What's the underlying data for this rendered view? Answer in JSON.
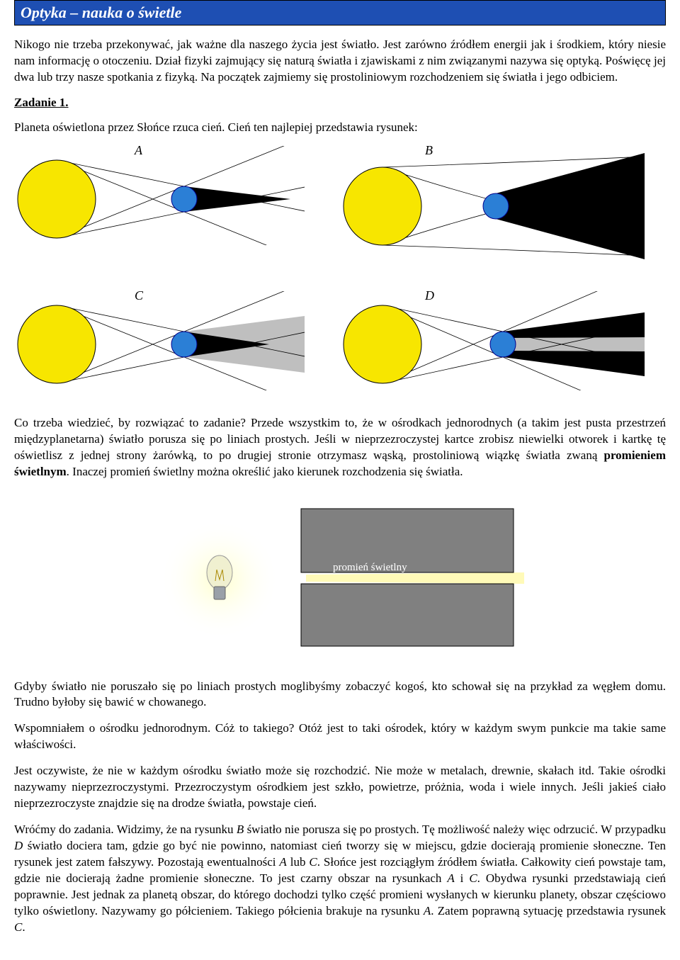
{
  "header": {
    "title": "Optyka – nauka o świetle"
  },
  "intro": {
    "text": "Nikogo nie trzeba przekonywać, jak ważne dla naszego życia jest światło. Jest zarówno źródłem energii jak i środkiem, który niesie nam informację o otoczeniu. Dział fizyki zajmujący się naturą światła i zjawiskami z nim związanymi nazywa się optyką. Poświęcę jej dwa lub trzy nasze spotkania z fizyką. Na początek zajmiemy się prostoliniowym rozchodzeniem się światła i jego odbiciem."
  },
  "task1": {
    "heading": "Zadanie 1.",
    "prompt": "Planeta oświetlona przez Słońce rzuca cień. Cień ten najlepiej przedstawia rysunek:",
    "labels": {
      "a": "A",
      "b": "B",
      "c": "C",
      "d": "D"
    }
  },
  "diagrams": {
    "sun_fill": "#f7e600",
    "sun_stroke": "#000000",
    "planet_fill": "#2b7fd6",
    "planet_stroke": "#00008b",
    "umbra_fill": "#000000",
    "penumbra_fill": "#bfbfbf",
    "ray_stroke": "#000000",
    "ray_width": 0.8,
    "sun_r": 55,
    "planet_r": 18
  },
  "explain1": {
    "text": "Co trzeba wiedzieć, by rozwiązać to zadanie? Przede wszystkim to, że w ośrodkach jednorodnych (a takim jest pusta przestrzeń międzyplanetarna) światło porusza się po liniach prostych. Jeśli w nieprzezroczystej kartce zrobisz niewielki otworek i kartkę tę oświetlisz z jednej strony żarówką, to po drugiej stronie otrzymasz wąską, prostoliniową wiązkę światła zwaną ",
    "bold": "promieniem świetlnym",
    "text2": ". Inaczej promień świetlny można określić jako kierunek rozchodzenia się światła."
  },
  "bulb": {
    "caption": "promień świetlny",
    "glow_inner": "#ffffcc",
    "glow_outer": "#ffffff",
    "barrier_fill": "#808080",
    "barrier_stroke": "#000000",
    "beam_fill": "#fff9b0",
    "bulb_glass": "#f0f0d0",
    "bulb_base": "#9aa0a8"
  },
  "explain2": {
    "p1": "Gdyby światło nie poruszało się po liniach prostych moglibyśmy zobaczyć kogoś, kto schował się na przykład za węgłem domu. Trudno byłoby się bawić w chowanego.",
    "p2": "Wspomniałem o ośrodku jednorodnym. Cóż to takiego? Otóż jest to taki ośrodek, który w każdym swym punkcie ma takie same właściwości.",
    "p3": "Jest oczywiste, że nie w każdym ośrodku światło może się rozchodzić. Nie może w metalach, drewnie, skałach itd. Takie ośrodki nazywamy nieprzezroczystymi. Przezroczystym ośrodkiem jest szkło, powietrze, próżnia, woda i wiele innych. Jeśli jakieś ciało nieprzezroczyste znajdzie się na drodze światła, powstaje cień.",
    "p4a": "Wróćmy do zadania. Widzimy, że na rysunku ",
    "p4i1": "B",
    "p4b": " światło nie porusza się po prostych. Tę możliwość należy więc odrzucić. W przypadku ",
    "p4i2": "D",
    "p4c": " światło dociera tam, gdzie go być nie powinno, natomiast cień tworzy się w miejscu, gdzie docierają promienie słoneczne. Ten rysunek jest zatem fałszywy. Pozostają ewentualności ",
    "p4i3": "A",
    "p4d": " lub ",
    "p4i4": "C",
    "p4e": ". Słońce jest rozciągłym źródłem światła. Całkowity cień powstaje tam, gdzie nie docierają żadne promienie słoneczne. To jest czarny obszar na rysunkach ",
    "p4i5": "A",
    "p4f": " i ",
    "p4i6": "C",
    "p4g": ". Obydwa rysunki przedstawiają cień poprawnie. Jest jednak za planetą obszar, do którego dochodzi tylko część promieni wysłanych w kierunku planety, obszar częściowo tylko oświetlony. Nazywamy go półcieniem. Takiego półcienia brakuje na rysunku ",
    "p4i7": "A",
    "p4h": ". Zatem poprawną sytuację przedstawia rysunek ",
    "p4i8": "C",
    "p4i": "."
  }
}
